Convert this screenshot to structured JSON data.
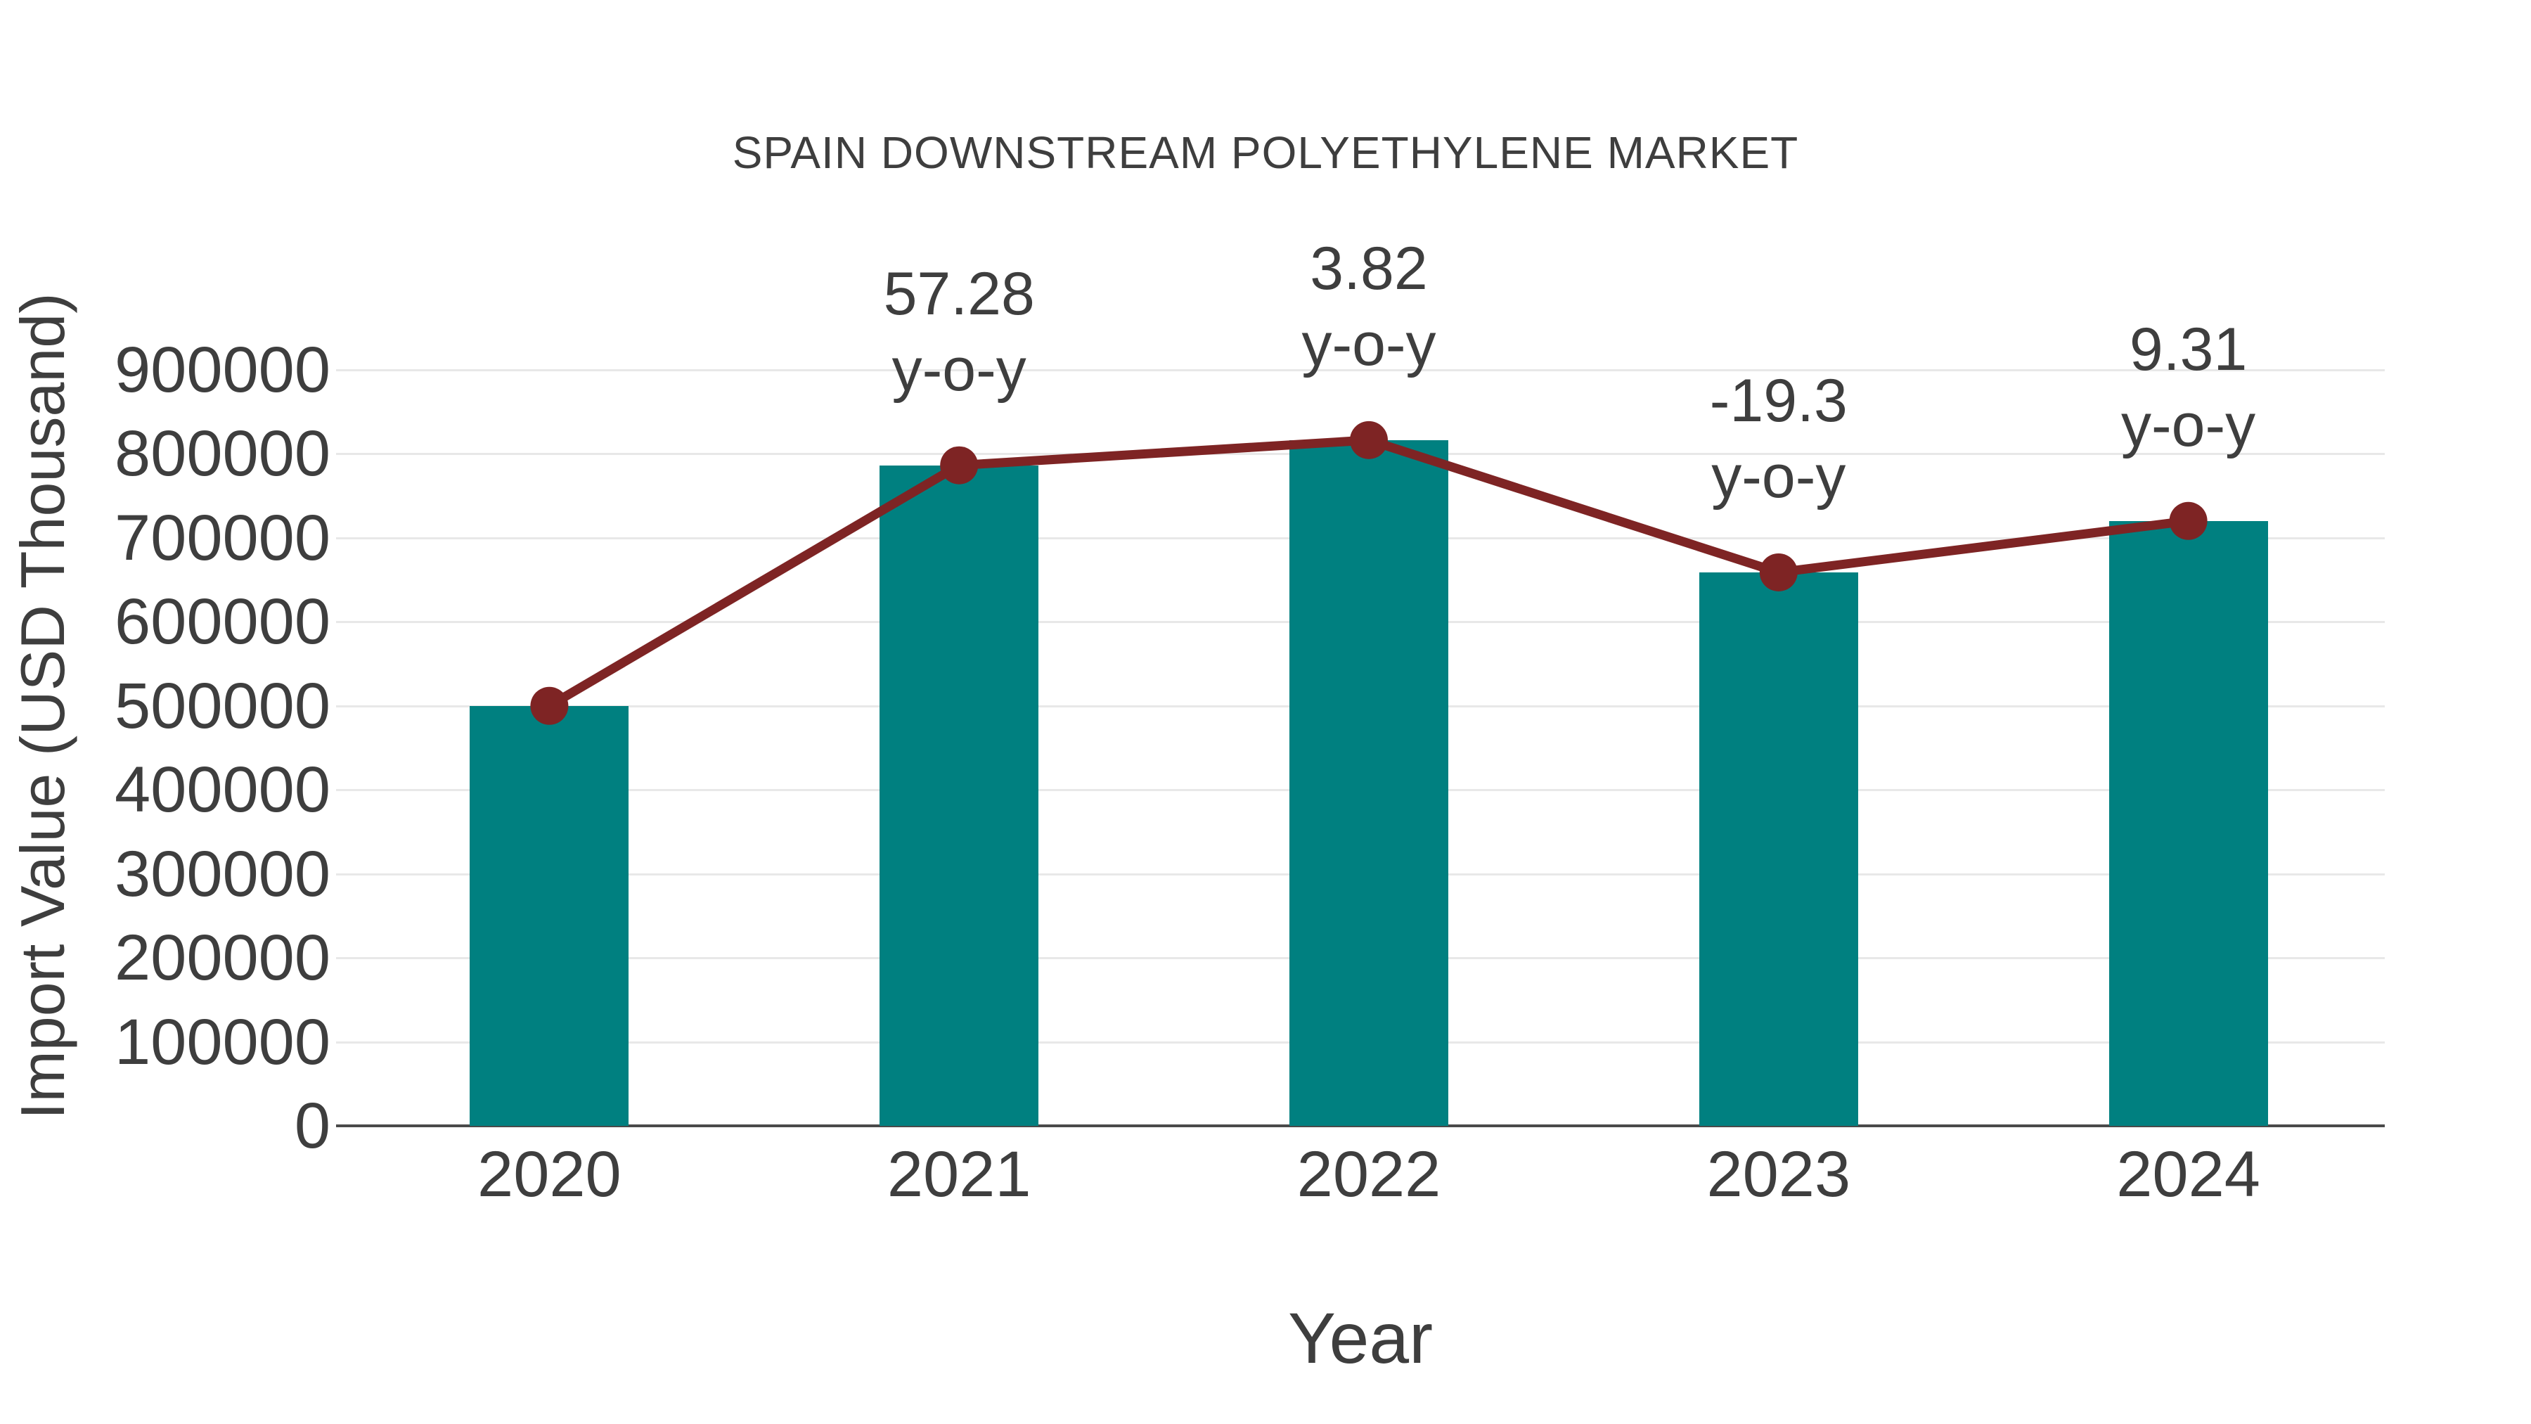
{
  "title": "SPAIN DOWNSTREAM POLYETHYLENE MARKET",
  "x_axis_title": "Year",
  "y_axis_title": "Import Value (USD Thousand)",
  "colors": {
    "bar": "#008080",
    "line": "#7e2424",
    "marker": "#7e2424",
    "text": "#3e3e3e",
    "grid": "#e8e8e8",
    "axis": "#4a4a4a"
  },
  "chart_data": {
    "type": "bar",
    "title": "SPAIN DOWNSTREAM POLYETHYLENE MARKET",
    "xlabel": "Year",
    "ylabel": "Import Value (USD Thousand)",
    "categories": [
      "2020",
      "2021",
      "2022",
      "2023",
      "2024"
    ],
    "series": [
      {
        "name": "Import Value bars",
        "type": "bar",
        "values": [
          500000,
          786400,
          816400,
          658900,
          720200
        ]
      },
      {
        "name": "Import Value trend line",
        "type": "line",
        "values": [
          500000,
          786400,
          816400,
          658900,
          720200
        ]
      }
    ],
    "annotations": [
      {
        "category": "2021",
        "lines": [
          "57.28",
          "y-o-y"
        ]
      },
      {
        "category": "2022",
        "lines": [
          "3.82",
          "y-o-y"
        ]
      },
      {
        "category": "2023",
        "lines": [
          "-19.3",
          "y-o-y"
        ]
      },
      {
        "category": "2024",
        "lines": [
          "9.31",
          "y-o-y"
        ]
      }
    ],
    "ylim": [
      0,
      900000
    ],
    "ytick_step": 100000,
    "grid": true,
    "legend_position": "none"
  }
}
